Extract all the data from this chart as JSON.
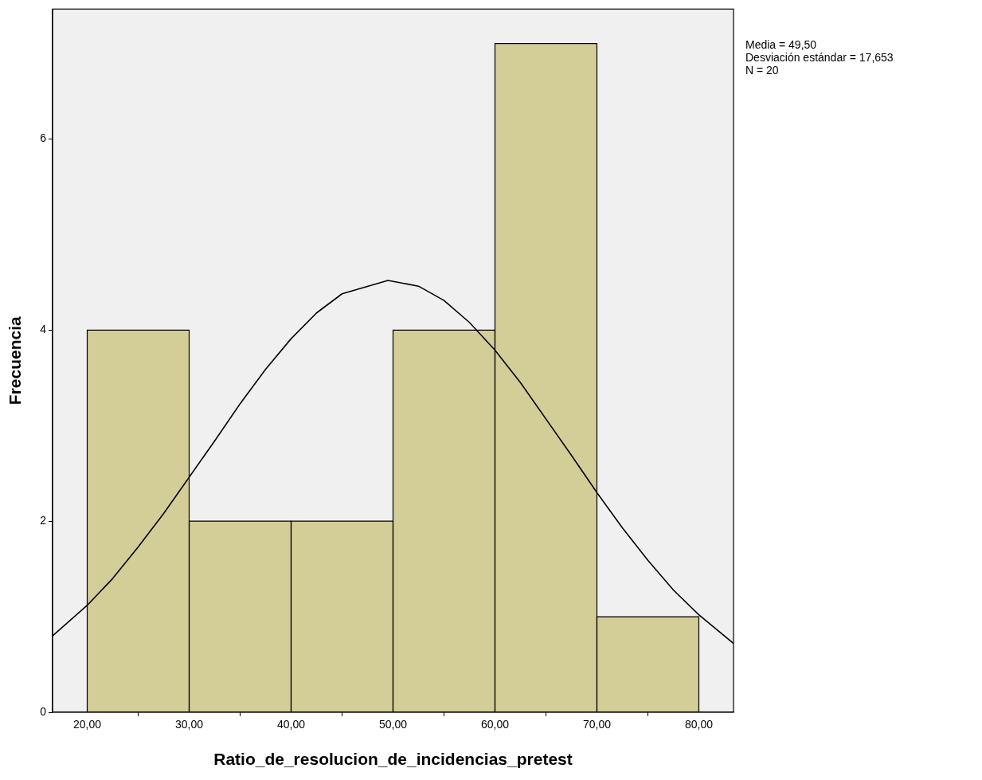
{
  "chart_data": {
    "type": "histogram",
    "xlabel": "Ratio_de_resolucion_de_incidencias_pretest",
    "ylabel": "Frecuencia",
    "bins": [
      20,
      30,
      40,
      50,
      60,
      70,
      80
    ],
    "values": [
      4,
      2,
      2,
      4,
      7,
      1
    ],
    "color": "#d3ce98",
    "series": [
      {
        "type": "line",
        "color": "#000000",
        "x": [
          16.6,
          20,
          22.5,
          25,
          27.5,
          30,
          32.5,
          35,
          37.5,
          40,
          42.5,
          45,
          49.5,
          52.5,
          55,
          57.5,
          60,
          62.5,
          65,
          67.5,
          70,
          72.5,
          75,
          77.5,
          80,
          83.4
        ],
        "values": [
          0.8,
          1.12,
          1.4,
          1.73,
          2.08,
          2.46,
          2.84,
          3.23,
          3.59,
          3.91,
          4.18,
          4.38,
          4.52,
          4.46,
          4.31,
          4.08,
          3.79,
          3.45,
          3.07,
          2.69,
          2.3,
          1.93,
          1.59,
          1.28,
          1.02,
          0.72
        ]
      }
    ],
    "xlim": [
      16.6,
      83.4
    ],
    "xticks": [
      {
        "value": 20,
        "label": "20,00"
      },
      {
        "value": 30,
        "label": "30,00"
      },
      {
        "value": 40,
        "label": "40,00"
      },
      {
        "value": 50,
        "label": "50,00"
      },
      {
        "value": 60,
        "label": "60,00"
      },
      {
        "value": 70,
        "label": "70,00"
      },
      {
        "value": 80,
        "label": "80,00"
      }
    ],
    "ylim": [
      0,
      7.36
    ],
    "yticks": [
      0,
      2,
      4,
      6
    ],
    "annotations": [
      "Media = 49,50",
      "Desviación estándar = 17,653",
      "N = 20"
    ],
    "grid": false,
    "legend": false
  }
}
